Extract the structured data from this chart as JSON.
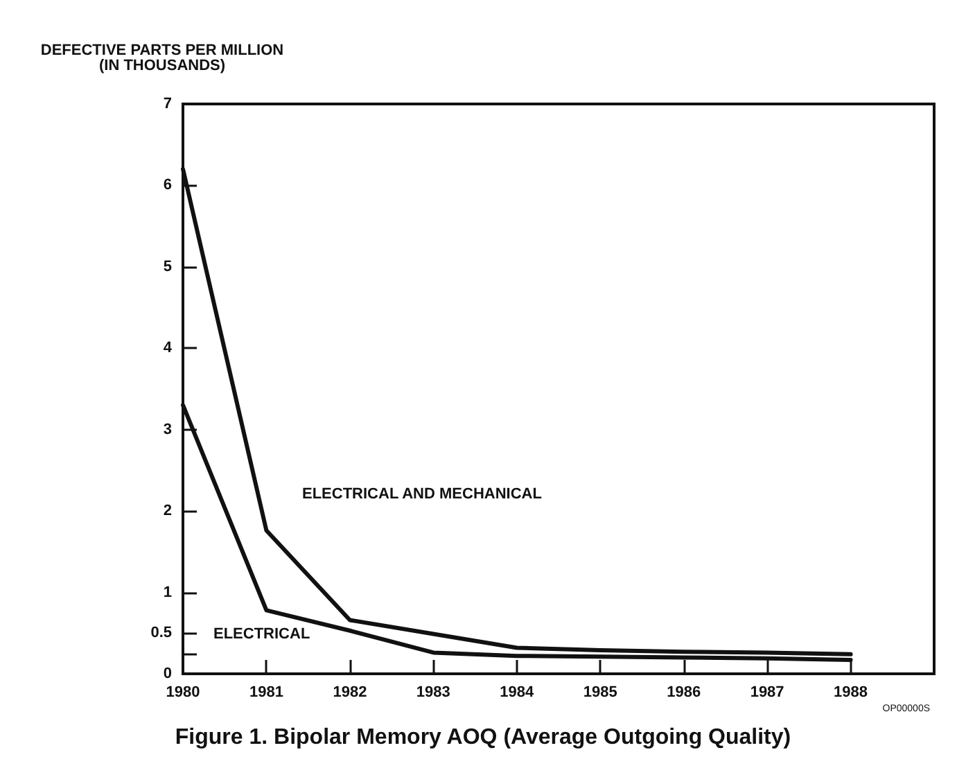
{
  "chart_data": {
    "type": "line",
    "title": "Figure 1. Bipolar Memory AOQ (Average Outgoing Quality)",
    "ylabel": "DEFECTIVE PARTS PER MILLION\n(IN THOUSANDS)",
    "x": [
      1980,
      1981,
      1982,
      1983,
      1984,
      1985,
      1986,
      1987,
      1988
    ],
    "series": [
      {
        "name": "ELECTRICAL AND MECHANICAL",
        "color": "#111111",
        "values": [
          6.2,
          1.76,
          0.66,
          0.49,
          0.32,
          0.29,
          0.27,
          0.26,
          0.24
        ]
      },
      {
        "name": "ELECTRICAL",
        "color": "#111111",
        "values": [
          3.3,
          0.78,
          0.53,
          0.26,
          0.22,
          0.21,
          0.2,
          0.19,
          0.17
        ]
      }
    ],
    "xlim": [
      1980,
      1989
    ],
    "xticks": [
      1980,
      1981,
      1982,
      1983,
      1984,
      1985,
      1986,
      1987,
      1988
    ],
    "ylim": [
      0,
      7
    ],
    "yticks": [
      0,
      {
        "value": 0.25,
        "label": null
      },
      0.5,
      1,
      2,
      3,
      4,
      5,
      6,
      7
    ],
    "annotations": [
      "OP00000S"
    ],
    "grid": false,
    "legend": false,
    "marker": "none",
    "line_style": "solid"
  }
}
